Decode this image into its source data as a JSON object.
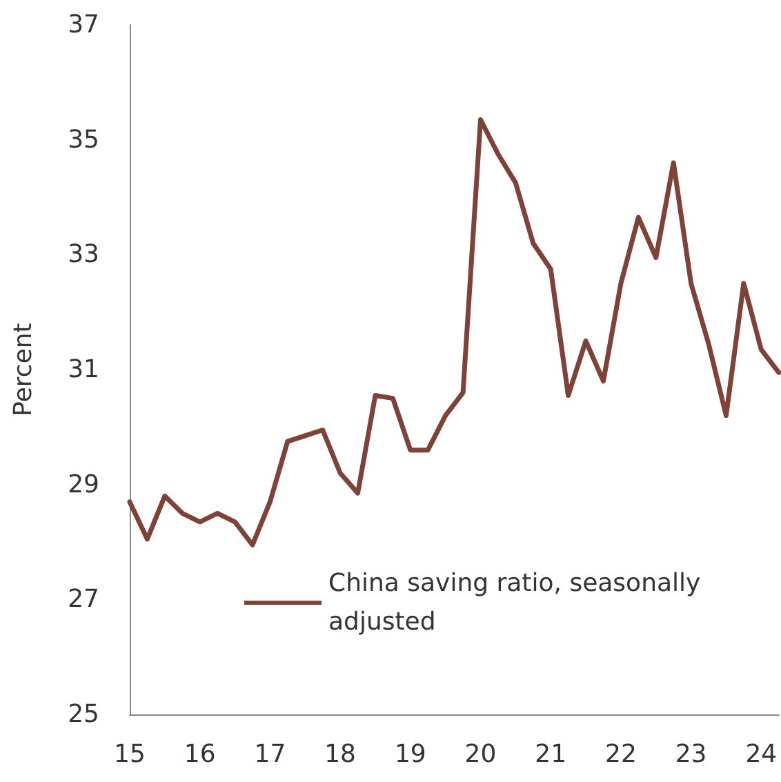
{
  "chart_data": {
    "type": "line",
    "ylabel": "Percent",
    "x": [
      15,
      15.25,
      15.5,
      15.75,
      16,
      16.25,
      16.5,
      16.75,
      17,
      17.25,
      17.5,
      17.75,
      18,
      18.25,
      18.5,
      18.75,
      19,
      19.25,
      19.5,
      19.75,
      20,
      20.25,
      20.5,
      20.75,
      21,
      21.25,
      21.5,
      21.75,
      22,
      22.25,
      22.5,
      22.75,
      23,
      23.25,
      23.5,
      23.75,
      24,
      24.25
    ],
    "series": [
      {
        "name": "China saving ratio, seasonally adjusted",
        "color": "#7f4238",
        "values": [
          28.7,
          28.05,
          28.8,
          28.5,
          28.35,
          28.5,
          28.35,
          27.95,
          28.7,
          29.75,
          29.85,
          29.95,
          29.2,
          28.85,
          30.55,
          30.5,
          29.6,
          29.6,
          30.2,
          30.6,
          35.35,
          34.75,
          34.25,
          33.2,
          32.75,
          30.55,
          31.5,
          30.8,
          32.5,
          33.65,
          32.95,
          34.6,
          32.5,
          31.45,
          30.2,
          32.5,
          31.35,
          30.95
        ]
      }
    ],
    "xlim": [
      15,
      24.25
    ],
    "xticks": [
      15,
      16,
      17,
      18,
      19,
      20,
      21,
      22,
      23,
      24
    ],
    "ylim": [
      25,
      37
    ],
    "yticks": [
      25,
      27,
      29,
      31,
      33,
      35,
      37
    ],
    "grid": false,
    "legend": "bottom",
    "marker": "none",
    "line_style": "solid"
  }
}
